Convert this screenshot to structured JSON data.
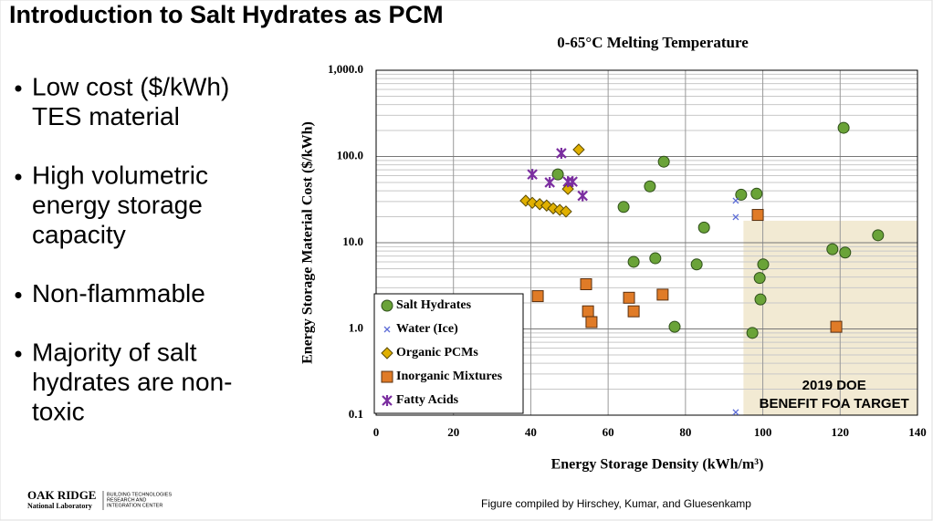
{
  "slide_title": "Introduction to Salt Hydrates as PCM",
  "bullets": [
    [
      "Low cost ($/kWh)",
      "TES material"
    ],
    [
      "High volumetric",
      "energy  storage",
      "capacity"
    ],
    [
      "Non-flammable"
    ],
    [
      "Majority of salt",
      "hydrates are non-",
      "toxic"
    ]
  ],
  "logo": {
    "name": "OAK RIDGE",
    "subname": "National Laboratory",
    "center": [
      "BUILDING TECHNOLOGIES",
      "RESEARCH AND",
      "INTEGRATION CENTER"
    ]
  },
  "credit": "Figure compiled by Hirschey, Kumar, and Gluesenkamp",
  "chart_data": {
    "type": "scatter",
    "title": "0-65°C Melting Temperature",
    "x_label": "Energy Storage Density (kWh/m³)",
    "y_label": "Energy Storage Material Cost ($/kWh)",
    "xlim": [
      0,
      140
    ],
    "xticks": [
      0,
      20,
      40,
      60,
      80,
      100,
      120,
      140
    ],
    "ylim": [
      0.1,
      1000
    ],
    "yscale": "log",
    "yticks": [
      0.1,
      {
        "value": 1,
        "label": "1.0"
      },
      {
        "value": 10,
        "label": "10.0"
      },
      {
        "value": 100,
        "label": "100.0"
      },
      {
        "value": 1000,
        "label": "1,000.0"
      }
    ],
    "grid": true,
    "legend": "lower left",
    "series": [
      {
        "name": "Salt Hydrates",
        "color": "#6aa338",
        "marker": "circle",
        "x": [
          47.0,
          74.4,
          70.8,
          64.0,
          94.4,
          98.4,
          120.9,
          84.8,
          66.6,
          72.2,
          82.9,
          100.1,
          99.2,
          99.4,
          118.0,
          121.3,
          129.8,
          77.2,
          97.3
        ],
        "values": [
          62,
          87,
          45,
          26,
          36,
          37,
          215,
          15,
          6.0,
          6.6,
          5.6,
          5.6,
          3.9,
          2.2,
          8.4,
          7.7,
          12.2,
          1.06,
          0.9
        ]
      },
      {
        "name": "Water (Ice)",
        "color": "#5b6bd6",
        "marker": "x",
        "x": [
          93.0,
          93.0,
          93.0
        ],
        "values": [
          30.7,
          19.8,
          0.108
        ]
      },
      {
        "name": "Organic PCMs",
        "color": "#e0b000",
        "marker": "diamond",
        "x": [
          38.7,
          40.4,
          42.3,
          44.1,
          45.8,
          47.5,
          49.1,
          49.6,
          52.4
        ],
        "values": [
          30.7,
          29,
          28,
          27,
          25,
          24,
          23,
          42,
          120
        ]
      },
      {
        "name": "Inorganic Mixtures",
        "color": "#e07b27",
        "marker": "square",
        "x": [
          41.8,
          54.3,
          54.8,
          55.7,
          65.4,
          66.6,
          74.1,
          98.7,
          119.0
        ],
        "values": [
          2.4,
          3.3,
          1.6,
          1.2,
          2.3,
          1.6,
          2.5,
          21,
          1.06
        ]
      },
      {
        "name": "Fatty Acids",
        "color": "#7b2ea0",
        "marker": "asterisk",
        "x": [
          40.4,
          47.9,
          44.9,
          49.6,
          50.8,
          53.4
        ],
        "values": [
          62,
          109,
          50,
          51,
          51,
          35
        ]
      }
    ],
    "target_region": {
      "xlim": [
        95,
        140
      ],
      "ylim": [
        0.1,
        18
      ],
      "label": [
        "2019 DOE",
        "BENEFIT FOA TARGET"
      ]
    }
  }
}
